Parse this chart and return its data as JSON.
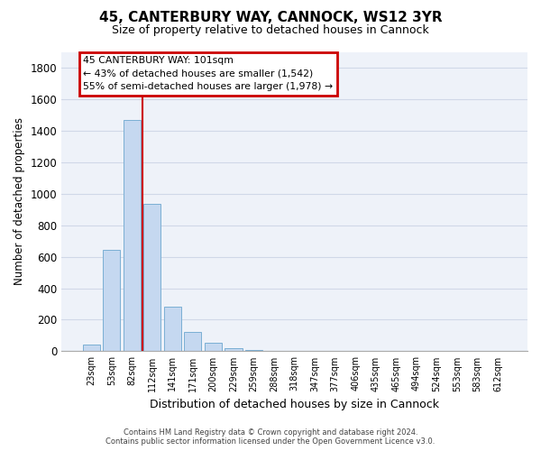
{
  "title": "45, CANTERBURY WAY, CANNOCK, WS12 3YR",
  "subtitle": "Size of property relative to detached houses in Cannock",
  "xlabel": "Distribution of detached houses by size in Cannock",
  "ylabel": "Number of detached properties",
  "bar_color": "#c5d8f0",
  "bar_edge_color": "#7bafd4",
  "categories": [
    "23sqm",
    "53sqm",
    "82sqm",
    "112sqm",
    "141sqm",
    "171sqm",
    "200sqm",
    "229sqm",
    "259sqm",
    "288sqm",
    "318sqm",
    "347sqm",
    "377sqm",
    "406sqm",
    "435sqm",
    "465sqm",
    "494sqm",
    "524sqm",
    "553sqm",
    "583sqm",
    "612sqm"
  ],
  "values": [
    40,
    645,
    1470,
    935,
    285,
    125,
    55,
    20,
    10,
    0,
    0,
    0,
    0,
    0,
    0,
    0,
    0,
    0,
    0,
    0,
    0
  ],
  "ylim": [
    0,
    1900
  ],
  "yticks": [
    0,
    200,
    400,
    600,
    800,
    1000,
    1200,
    1400,
    1600,
    1800
  ],
  "red_line_x": 2.5,
  "annotation_text_line1": "45 CANTERBURY WAY: 101sqm",
  "annotation_text_line2": "← 43% of detached houses are smaller (1,542)",
  "annotation_text_line3": "55% of semi-detached houses are larger (1,978) →",
  "annotation_box_color": "#ffffff",
  "annotation_box_edge_color": "#cc0000",
  "red_line_color": "#cc0000",
  "background_color": "#eef2f9",
  "grid_color": "#d0d8e8",
  "footer_line1": "Contains HM Land Registry data © Crown copyright and database right 2024.",
  "footer_line2": "Contains public sector information licensed under the Open Government Licence v3.0."
}
